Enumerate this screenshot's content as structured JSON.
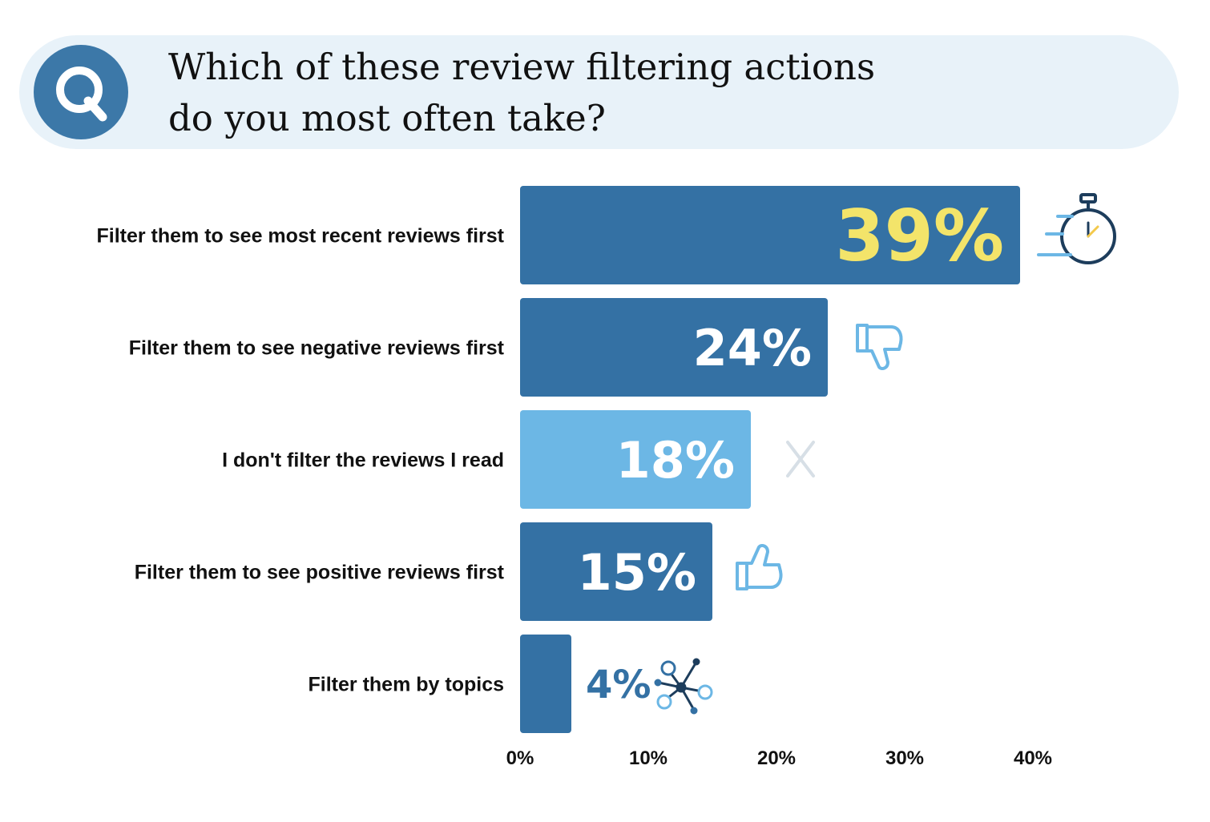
{
  "question": {
    "badge_letter": "Q",
    "title_lines": [
      "Which of these review filtering actions",
      "do you most often take?"
    ]
  },
  "colors": {
    "bar_dark": "#3471a4",
    "bar_light": "#6cb7e5",
    "value_highlight": "#f3e46a",
    "value_white": "#ffffff",
    "value_dark": "#3471a4",
    "banner": "#e8f2f9",
    "badge": "#3c78a8"
  },
  "chart_data": {
    "type": "bar",
    "orientation": "horizontal",
    "title": "Which of these review filtering actions do you most often take?",
    "categories": [
      "Filter them to see most recent reviews first",
      "Filter them to see negative reviews first",
      "I don't filter the reviews I read",
      "Filter them to see positive reviews first",
      "Filter them by topics"
    ],
    "values": [
      39,
      24,
      18,
      15,
      4
    ],
    "value_labels": [
      "39%",
      "24%",
      "18%",
      "15%",
      "4%"
    ],
    "icons": [
      "stopwatch-icon",
      "thumbs-down-icon",
      "x-icon",
      "thumbs-up-icon",
      "network-icon"
    ],
    "xlim": [
      0,
      40
    ],
    "xticks": [
      0,
      10,
      20,
      30,
      40
    ],
    "xtick_labels": [
      "0%",
      "10%",
      "20%",
      "30%",
      "40%"
    ],
    "xlabel": "",
    "ylabel": "",
    "grid": false,
    "legend": "none"
  }
}
